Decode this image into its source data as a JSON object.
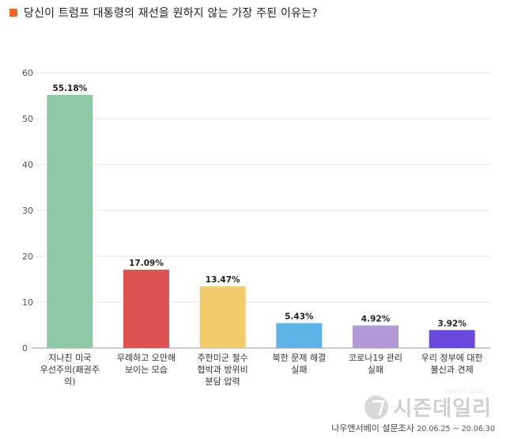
{
  "title": "당신이 트럼프 대통령의 재선을 원하지 않는 가장 주된 이유는?",
  "chart_data": {
    "type": "bar",
    "categories": [
      [
        "지나친 미국",
        "우선주의(패권주",
        "의)"
      ],
      [
        "무례하고 오만해",
        "보이는 모습"
      ],
      [
        "주한미군 철수",
        "협박과 방위비",
        "분담 압력"
      ],
      [
        "북한 문제 해결",
        "실패"
      ],
      [
        "코로나19 관리",
        "실패"
      ],
      [
        "우리 정부에 대한",
        "불신과 견제"
      ]
    ],
    "values": [
      55.18,
      17.09,
      13.47,
      5.43,
      4.92,
      3.92
    ],
    "value_labels": [
      "55.18%",
      "17.09%",
      "13.47%",
      "5.43%",
      "4.92%",
      "3.92%"
    ],
    "colors": [
      "#8cc9a6",
      "#de5252",
      "#f2cb6a",
      "#5bb3e8",
      "#b198d6",
      "#6a48dd"
    ],
    "ylim": [
      0,
      60
    ],
    "yticks": [
      0,
      10,
      20,
      30,
      40,
      50,
      60
    ],
    "grid": true,
    "xlabel": "",
    "ylabel": ""
  },
  "logo": {
    "text": "시즌데일리",
    "sub": "Season Daily"
  },
  "source": {
    "name": "나우앤서베이 설문조사",
    "dates": "20.06.25 ~ 20.06.30"
  }
}
